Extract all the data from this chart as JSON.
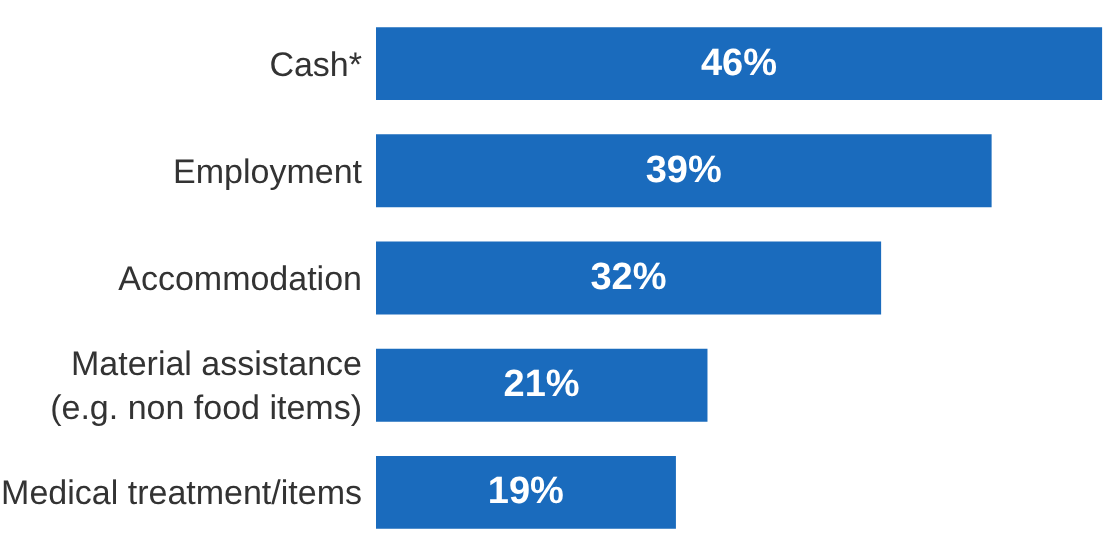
{
  "chart_data": {
    "type": "bar",
    "orientation": "horizontal",
    "categories": [
      "Cash*",
      "Employment",
      "Accommodation",
      "Material assistance\n(e.g. non food items)",
      "Medical treatment/items"
    ],
    "values": [
      46,
      39,
      32,
      21,
      19
    ],
    "value_labels": [
      "46%",
      "39%",
      "32%",
      "21%",
      "19%"
    ],
    "color": "#1a6bbd",
    "xlim": [
      0,
      46.5
    ]
  }
}
